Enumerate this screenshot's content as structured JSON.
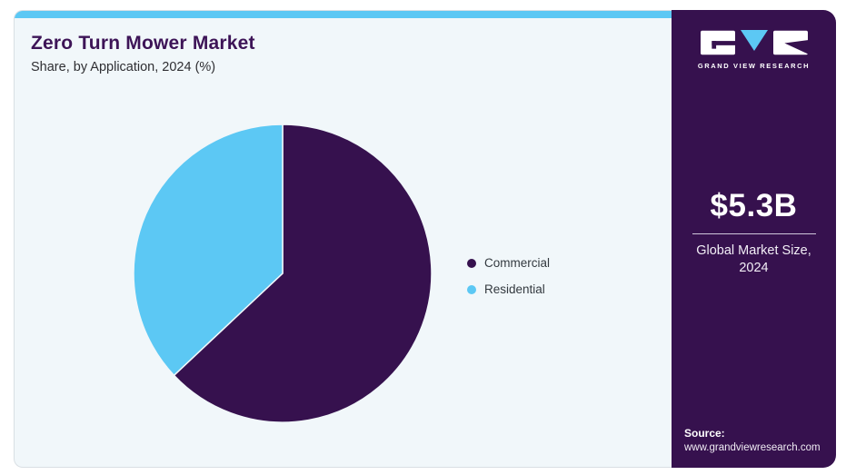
{
  "header": {
    "title": "Zero Turn Mower Market",
    "subtitle": "Share, by Application, 2024 (%)"
  },
  "chart_data": {
    "type": "pie",
    "title": "Zero Turn Mower Market",
    "subtitle": "Share, by Application, 2024 (%)",
    "categories": [
      "Commercial",
      "Residential"
    ],
    "values": [
      63,
      37
    ],
    "unit": "%",
    "colors": [
      "#36114e",
      "#5cc8f4"
    ],
    "start_angle_deg": 0,
    "direction": "clockwise",
    "legend_position": "right",
    "data_labels_visible": false
  },
  "legend": {
    "items": [
      {
        "label": "Commercial",
        "color": "#36114e"
      },
      {
        "label": "Residential",
        "color": "#5cc8f4"
      }
    ]
  },
  "sidebar": {
    "logo_text": "GRAND VIEW RESEARCH",
    "market_size_value": "$5.3B",
    "market_size_label": "Global Market Size,\n2024",
    "source_label": "Source:",
    "source_url": "www.grandviewresearch.com"
  },
  "colors": {
    "accent_blue": "#5cc8f4",
    "dark_purple": "#36114e",
    "panel_background": "#f1f7fa",
    "panel_border": "#d9dfe4",
    "title_purple": "#3d1457"
  }
}
